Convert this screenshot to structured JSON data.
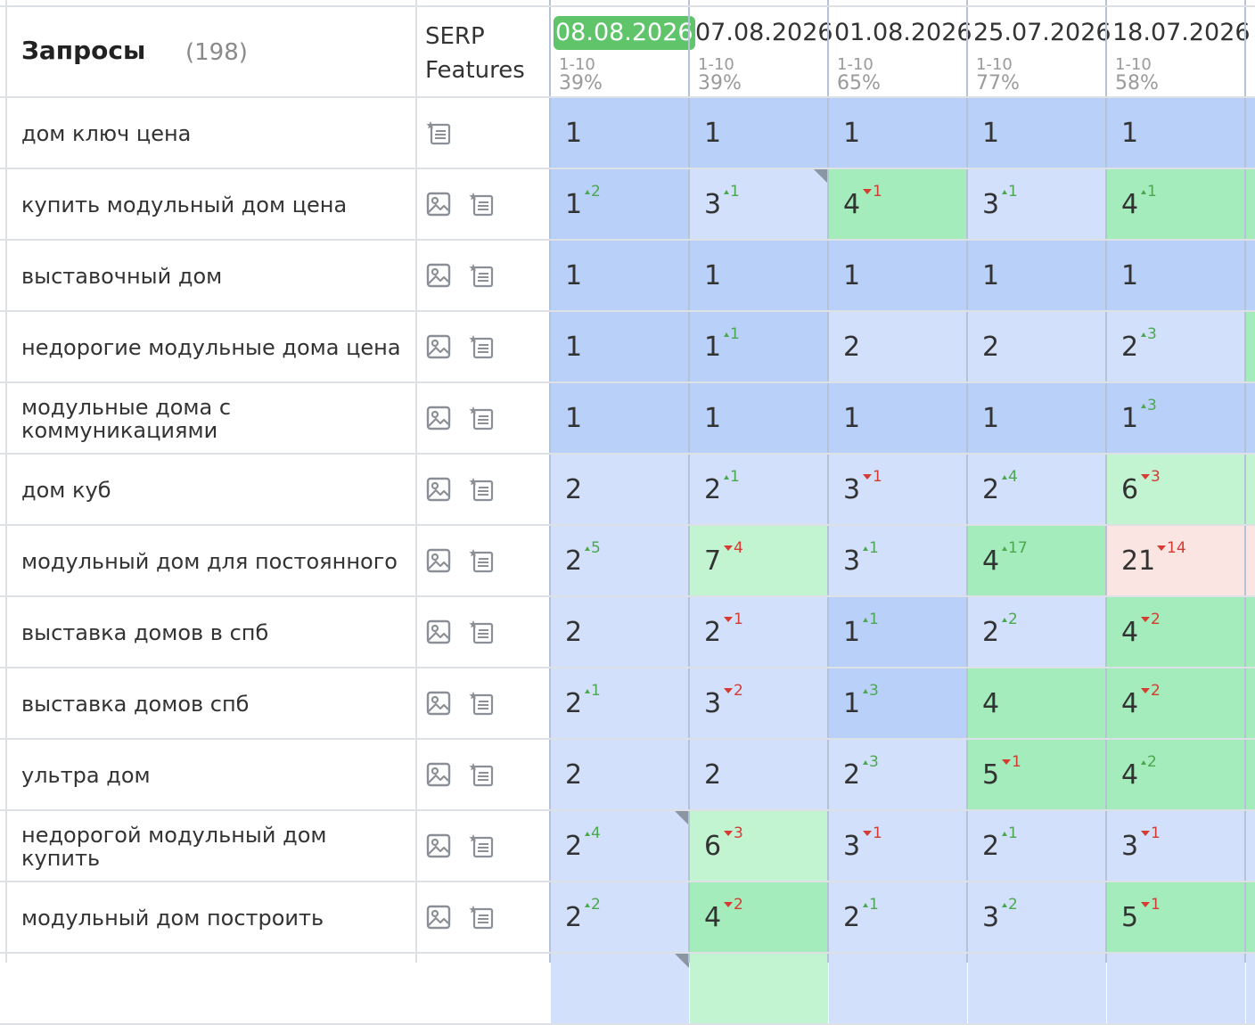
{
  "header": {
    "title": "Запросы",
    "count": "(198)",
    "serp_label_1": "SERP",
    "serp_label_2": "Features"
  },
  "colors": {
    "pos_top": "#b9d0f8",
    "pos_high": "#d3e0fc",
    "pos_mid_strong": "#a4ecbb",
    "pos_mid": "#c3f4d1",
    "pos_low": "#fbe5e2",
    "active_date": "#5fc46a",
    "delta_up": "#4aa84f",
    "delta_down": "#d63b32"
  },
  "columns": [
    {
      "date": "08.08.2026",
      "range": "1-10",
      "pct": "39%",
      "active": true
    },
    {
      "date": "07.08.2026",
      "range": "1-10",
      "pct": "39%"
    },
    {
      "date": "01.08.2026",
      "range": "1-10",
      "pct": "65%"
    },
    {
      "date": "25.07.2026",
      "range": "1-10",
      "pct": "77%"
    },
    {
      "date": "18.07.2026",
      "range": "1-10",
      "pct": "58%"
    }
  ],
  "rows": [
    {
      "query": "дом ключ цена",
      "icons": [
        "snippet-icon"
      ],
      "cells": [
        {
          "v": "1",
          "c": "top"
        },
        {
          "v": "1",
          "c": "top"
        },
        {
          "v": "1",
          "c": "top"
        },
        {
          "v": "1",
          "c": "top"
        },
        {
          "v": "1",
          "c": "top"
        }
      ],
      "edge": "top"
    },
    {
      "query": "купить модульный дом цена",
      "icons": [
        "image-icon",
        "snippet-icon"
      ],
      "cells": [
        {
          "v": "1",
          "c": "top",
          "d": "2",
          "dir": "up"
        },
        {
          "v": "3",
          "c": "high",
          "d": "1",
          "dir": "up",
          "corner": true
        },
        {
          "v": "4",
          "c": "midS",
          "d": "1",
          "dir": "down"
        },
        {
          "v": "3",
          "c": "high",
          "d": "1",
          "dir": "up"
        },
        {
          "v": "4",
          "c": "midS",
          "d": "1",
          "dir": "up"
        }
      ],
      "edge": "midS"
    },
    {
      "query": "выставочный дом",
      "icons": [
        "image-icon",
        "snippet-icon"
      ],
      "cells": [
        {
          "v": "1",
          "c": "top"
        },
        {
          "v": "1",
          "c": "top"
        },
        {
          "v": "1",
          "c": "top"
        },
        {
          "v": "1",
          "c": "top"
        },
        {
          "v": "1",
          "c": "top"
        }
      ],
      "edge": "top"
    },
    {
      "query": "недорогие модульные дома цена",
      "icons": [
        "image-icon",
        "snippet-icon"
      ],
      "cells": [
        {
          "v": "1",
          "c": "top"
        },
        {
          "v": "1",
          "c": "top",
          "d": "1",
          "dir": "up"
        },
        {
          "v": "2",
          "c": "high"
        },
        {
          "v": "2",
          "c": "high"
        },
        {
          "v": "2",
          "c": "high",
          "d": "3",
          "dir": "up"
        }
      ],
      "edge": "midS"
    },
    {
      "query": "модульные дома с коммуникациями",
      "icons": [
        "image-icon",
        "snippet-icon"
      ],
      "cells": [
        {
          "v": "1",
          "c": "top"
        },
        {
          "v": "1",
          "c": "top"
        },
        {
          "v": "1",
          "c": "top"
        },
        {
          "v": "1",
          "c": "top"
        },
        {
          "v": "1",
          "c": "top",
          "d": "3",
          "dir": "up"
        }
      ],
      "edge": "top"
    },
    {
      "query": "дом куб",
      "icons": [
        "image-icon",
        "snippet-icon"
      ],
      "cells": [
        {
          "v": "2",
          "c": "high"
        },
        {
          "v": "2",
          "c": "high",
          "d": "1",
          "dir": "up"
        },
        {
          "v": "3",
          "c": "high",
          "d": "1",
          "dir": "down"
        },
        {
          "v": "2",
          "c": "high",
          "d": "4",
          "dir": "up"
        },
        {
          "v": "6",
          "c": "mid",
          "d": "3",
          "dir": "down"
        }
      ],
      "edge": "mid"
    },
    {
      "query": "модульный дом для постоянного",
      "icons": [
        "image-icon",
        "snippet-icon"
      ],
      "cells": [
        {
          "v": "2",
          "c": "high",
          "d": "5",
          "dir": "up"
        },
        {
          "v": "7",
          "c": "mid",
          "d": "4",
          "dir": "down"
        },
        {
          "v": "3",
          "c": "high",
          "d": "1",
          "dir": "up"
        },
        {
          "v": "4",
          "c": "midS",
          "d": "17",
          "dir": "up"
        },
        {
          "v": "21",
          "c": "low",
          "d": "14",
          "dir": "down"
        }
      ],
      "edge": "low"
    },
    {
      "query": "выставка домов в спб",
      "icons": [
        "image-icon",
        "snippet-icon"
      ],
      "cells": [
        {
          "v": "2",
          "c": "high"
        },
        {
          "v": "2",
          "c": "high",
          "d": "1",
          "dir": "down"
        },
        {
          "v": "1",
          "c": "top",
          "d": "1",
          "dir": "up"
        },
        {
          "v": "2",
          "c": "high",
          "d": "2",
          "dir": "up"
        },
        {
          "v": "4",
          "c": "midS",
          "d": "2",
          "dir": "down"
        }
      ],
      "edge": "midS"
    },
    {
      "query": "выставка домов спб",
      "icons": [
        "image-icon",
        "snippet-icon"
      ],
      "cells": [
        {
          "v": "2",
          "c": "high",
          "d": "1",
          "dir": "up"
        },
        {
          "v": "3",
          "c": "high",
          "d": "2",
          "dir": "down"
        },
        {
          "v": "1",
          "c": "top",
          "d": "3",
          "dir": "up"
        },
        {
          "v": "4",
          "c": "midS"
        },
        {
          "v": "4",
          "c": "midS",
          "d": "2",
          "dir": "down"
        }
      ],
      "edge": "midS"
    },
    {
      "query": "ультра дом",
      "icons": [
        "image-icon",
        "snippet-icon"
      ],
      "cells": [
        {
          "v": "2",
          "c": "high"
        },
        {
          "v": "2",
          "c": "high"
        },
        {
          "v": "2",
          "c": "high",
          "d": "3",
          "dir": "up"
        },
        {
          "v": "5",
          "c": "midS",
          "d": "1",
          "dir": "down"
        },
        {
          "v": "4",
          "c": "midS",
          "d": "2",
          "dir": "up"
        }
      ],
      "edge": "midS"
    },
    {
      "query": "недорогой модульный дом купить",
      "icons": [
        "image-icon",
        "snippet-icon"
      ],
      "cells": [
        {
          "v": "2",
          "c": "high",
          "d": "4",
          "dir": "up",
          "corner": true
        },
        {
          "v": "6",
          "c": "mid",
          "d": "3",
          "dir": "down"
        },
        {
          "v": "3",
          "c": "high",
          "d": "1",
          "dir": "down"
        },
        {
          "v": "2",
          "c": "high",
          "d": "1",
          "dir": "up"
        },
        {
          "v": "3",
          "c": "high",
          "d": "1",
          "dir": "down"
        }
      ],
      "edge": "high"
    },
    {
      "query": "модульный дом построить",
      "icons": [
        "image-icon",
        "snippet-icon"
      ],
      "cells": [
        {
          "v": "2",
          "c": "high",
          "d": "2",
          "dir": "up"
        },
        {
          "v": "4",
          "c": "midS",
          "d": "2",
          "dir": "down"
        },
        {
          "v": "2",
          "c": "high",
          "d": "1",
          "dir": "up"
        },
        {
          "v": "3",
          "c": "high",
          "d": "2",
          "dir": "up"
        },
        {
          "v": "5",
          "c": "midS",
          "d": "1",
          "dir": "down"
        }
      ],
      "edge": "midS"
    },
    {
      "query": "",
      "icons": [],
      "cells": [
        {
          "v": "",
          "c": "high",
          "corner": true
        },
        {
          "v": "",
          "c": "mid"
        },
        {
          "v": "",
          "c": "high"
        },
        {
          "v": "",
          "c": "high"
        },
        {
          "v": "",
          "c": "high"
        }
      ],
      "edge": "high"
    }
  ]
}
